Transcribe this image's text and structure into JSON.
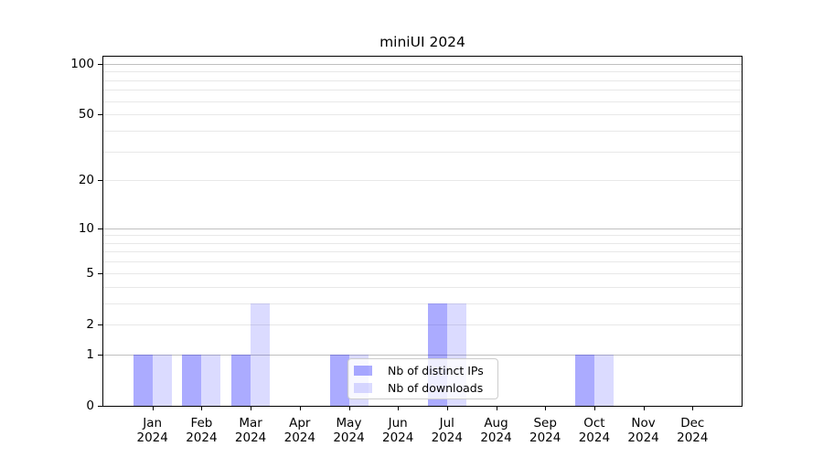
{
  "chart_data": {
    "type": "bar",
    "title": "miniUI 2024",
    "categories": [
      "Jan",
      "Feb",
      "Mar",
      "Apr",
      "May",
      "Jun",
      "Jul",
      "Aug",
      "Sep",
      "Oct",
      "Nov",
      "Dec"
    ],
    "x_year_label": "2024",
    "series": [
      {
        "name": "Nb of distinct IPs",
        "slug": "distinct-ips",
        "color": "#0000ff",
        "alpha": 0.33,
        "values": [
          1,
          1,
          1,
          0,
          1,
          0,
          3,
          0,
          0,
          1,
          0,
          0
        ]
      },
      {
        "name": "Nb of downloads",
        "slug": "downloads",
        "color": "#0000ff",
        "alpha": 0.14,
        "values": [
          1,
          1,
          3,
          0,
          1,
          0,
          3,
          0,
          0,
          1,
          0,
          0
        ]
      }
    ],
    "xlabel": "",
    "ylabel": "",
    "yscale": "log1p",
    "ylim": [
      0,
      110
    ],
    "yticks": [
      0,
      1,
      2,
      5,
      10,
      20,
      50,
      100
    ],
    "gridlines_major": [
      1,
      10,
      100
    ],
    "gridlines_minor": [
      2,
      3,
      4,
      5,
      6,
      7,
      8,
      9,
      20,
      30,
      40,
      50,
      60,
      70,
      80,
      90
    ],
    "grid": "horizontal",
    "legend_position": "inside-lower-center"
  },
  "colors": {
    "background": "#ffffff",
    "spine": "#000000",
    "major_grid": "#c0c0c0",
    "minor_grid": "#e8e8e8",
    "legend_border": "#cccccc",
    "bar_distinct_ips_rendered": "#aaaaf8",
    "bar_downloads_rendered": "#dadaf8"
  }
}
